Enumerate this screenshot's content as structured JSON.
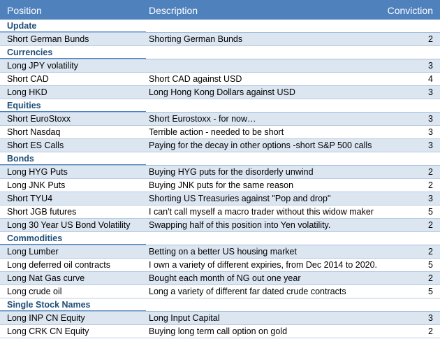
{
  "header": {
    "position": "Position",
    "description": "Description",
    "conviction": "Conviction"
  },
  "sections": [
    {
      "title": "Update",
      "rows": [
        {
          "position": "Short German Bunds",
          "description": "Shorting German Bunds",
          "conviction": "2"
        }
      ]
    },
    {
      "title": "Currencies",
      "rows": [
        {
          "position": "Long JPY volatility",
          "description": "",
          "conviction": "3"
        },
        {
          "position": "Short CAD",
          "description": "Short CAD against USD",
          "conviction": "4"
        },
        {
          "position": "Long HKD",
          "description": "Long Hong Kong Dollars against USD",
          "conviction": "3"
        }
      ]
    },
    {
      "title": "Equities",
      "rows": [
        {
          "position": "Short EuroStoxx",
          "description": "Short Eurostoxx - for now…",
          "conviction": "3"
        },
        {
          "position": "Short Nasdaq",
          "description": "Terrible action - needed to be short",
          "conviction": "3"
        },
        {
          "position": "Short ES Calls",
          "description": "Paying for the decay in other options -short S&P 500 calls",
          "conviction": "3"
        }
      ]
    },
    {
      "title": "Bonds",
      "rows": [
        {
          "position": "Long HYG Puts",
          "description": "Buying HYG puts for the disorderly unwind",
          "conviction": "2"
        },
        {
          "position": "Long JNK Puts",
          "description": "Buying JNK puts for the same reason",
          "conviction": "2"
        },
        {
          "position": "Short TYU4",
          "description": "Shorting US Treasuries against \"Pop and drop\"",
          "conviction": "3"
        },
        {
          "position": "Short JGB futures",
          "description": "I can't call myself a macro trader without this widow maker",
          "conviction": "5"
        },
        {
          "position": "Long 30 Year US Bond Volatility",
          "description": "Swapping half of this position into Yen volatility.",
          "conviction": "2"
        }
      ]
    },
    {
      "title": "Commodities",
      "rows": [
        {
          "position": "Long Lumber",
          "description": "Betting on a better US housing market",
          "conviction": "2"
        },
        {
          "position": "Long deferred oil contracts",
          "description": "I own a variety of different expiries, from Dec 2014 to 2020.",
          "conviction": "5"
        },
        {
          "position": "Long Nat Gas curve",
          "description": "Bought each month of NG out one year",
          "conviction": "2"
        },
        {
          "position": "Long crude oil",
          "description": "Long a variety of different far dated crude contracts",
          "conviction": "5"
        }
      ]
    },
    {
      "title": "Single Stock Names",
      "rows": [
        {
          "position": "Long INP CN Equity",
          "description": "Long Input Capital",
          "conviction": "3"
        },
        {
          "position": "Long CRK CN Equity",
          "description": "Buying long term call option on gold",
          "conviction": "2"
        }
      ]
    }
  ]
}
